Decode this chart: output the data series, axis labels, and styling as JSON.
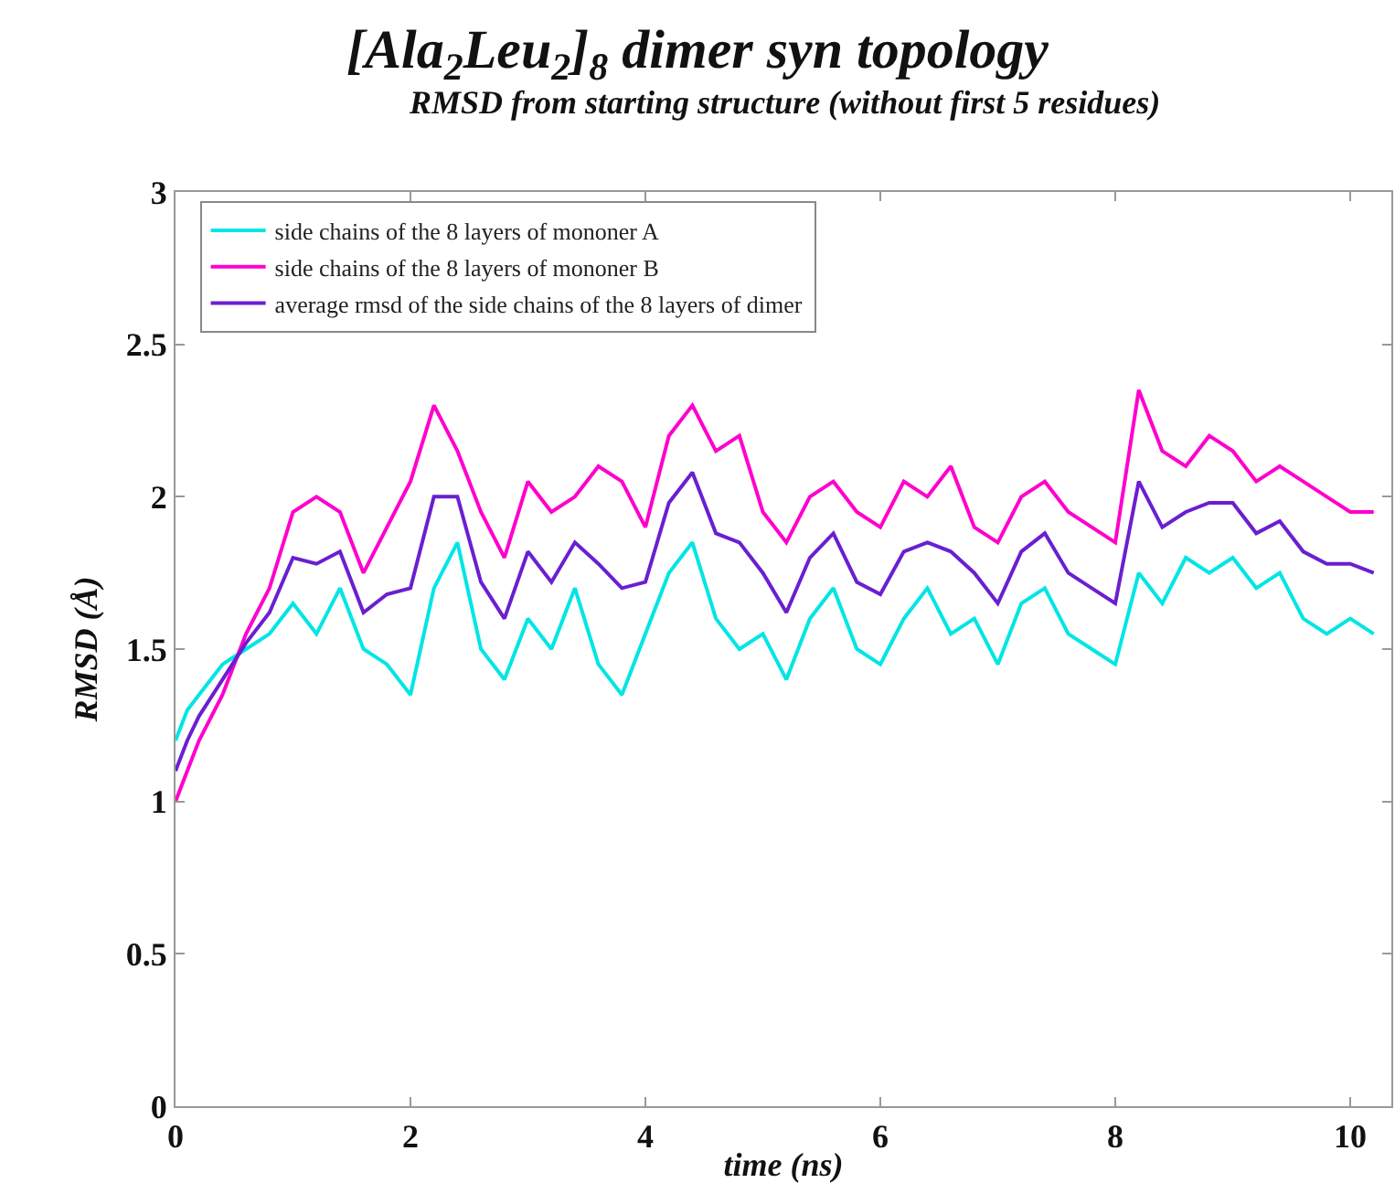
{
  "chart_data": {
    "type": "line",
    "title": "[Ala$_{2}$Leu$_{2}$]$_{8}$ dimer syn topology",
    "subtitle": "RMSD from starting structure (without first 5 residues)",
    "xlabel": "time (ns)",
    "ylabel": "RMSD (Å)",
    "x": [
      0,
      0.1,
      0.2,
      0.4,
      0.6,
      0.8,
      1.0,
      1.2,
      1.4,
      1.6,
      1.8,
      2.0,
      2.2,
      2.4,
      2.6,
      2.8,
      3.0,
      3.2,
      3.4,
      3.6,
      3.8,
      4.0,
      4.2,
      4.4,
      4.6,
      4.8,
      5.0,
      5.2,
      5.4,
      5.6,
      5.8,
      6.0,
      6.2,
      6.4,
      6.6,
      6.8,
      7.0,
      7.2,
      7.4,
      7.6,
      7.8,
      8.0,
      8.2,
      8.4,
      8.6,
      8.8,
      9.0,
      9.2,
      9.4,
      9.6,
      9.8,
      10.0,
      10.2
    ],
    "series": [
      {
        "name": "side chains of the 8 layers of mononer A",
        "color": "#00e5e5",
        "values": [
          1.2,
          1.3,
          1.35,
          1.45,
          1.5,
          1.55,
          1.65,
          1.55,
          1.7,
          1.5,
          1.45,
          1.35,
          1.7,
          1.85,
          1.5,
          1.4,
          1.6,
          1.5,
          1.7,
          1.45,
          1.35,
          1.55,
          1.75,
          1.85,
          1.6,
          1.5,
          1.55,
          1.4,
          1.6,
          1.7,
          1.5,
          1.45,
          1.6,
          1.7,
          1.55,
          1.6,
          1.45,
          1.65,
          1.7,
          1.55,
          1.5,
          1.45,
          1.75,
          1.65,
          1.8,
          1.75,
          1.8,
          1.7,
          1.75,
          1.6,
          1.55,
          1.6,
          1.55
        ]
      },
      {
        "name": "side chains of the 8 layers of mononer B",
        "color": "#ff00cc",
        "values": [
          1.0,
          1.1,
          1.2,
          1.35,
          1.55,
          1.7,
          1.95,
          2.0,
          1.95,
          1.75,
          1.9,
          2.05,
          2.3,
          2.15,
          1.95,
          1.8,
          2.05,
          1.95,
          2.0,
          2.1,
          2.05,
          1.9,
          2.2,
          2.3,
          2.15,
          2.2,
          1.95,
          1.85,
          2.0,
          2.05,
          1.95,
          1.9,
          2.05,
          2.0,
          2.1,
          1.9,
          1.85,
          2.0,
          2.05,
          1.95,
          1.9,
          1.85,
          2.35,
          2.15,
          2.1,
          2.2,
          2.15,
          2.05,
          2.1,
          2.05,
          2.0,
          1.95,
          1.95
        ]
      },
      {
        "name": "average rmsd of the side chains of the 8 layers of dimer",
        "color": "#6a1fd0",
        "values": [
          1.1,
          1.2,
          1.28,
          1.4,
          1.52,
          1.62,
          1.8,
          1.78,
          1.82,
          1.62,
          1.68,
          1.7,
          2.0,
          2.0,
          1.72,
          1.6,
          1.82,
          1.72,
          1.85,
          1.78,
          1.7,
          1.72,
          1.98,
          2.08,
          1.88,
          1.85,
          1.75,
          1.62,
          1.8,
          1.88,
          1.72,
          1.68,
          1.82,
          1.85,
          1.82,
          1.75,
          1.65,
          1.82,
          1.88,
          1.75,
          1.7,
          1.65,
          2.05,
          1.9,
          1.95,
          1.98,
          1.98,
          1.88,
          1.92,
          1.82,
          1.78,
          1.78,
          1.75
        ]
      }
    ],
    "xlim": [
      0,
      10.35
    ],
    "xticks": [
      0,
      2,
      4,
      6,
      8,
      10
    ],
    "ylim": [
      0,
      3
    ],
    "yticks": [
      0,
      0.5,
      1,
      1.5,
      2,
      2.5,
      3
    ],
    "legend": "top left",
    "grid": false,
    "marker": "none",
    "line_style": "solid"
  }
}
